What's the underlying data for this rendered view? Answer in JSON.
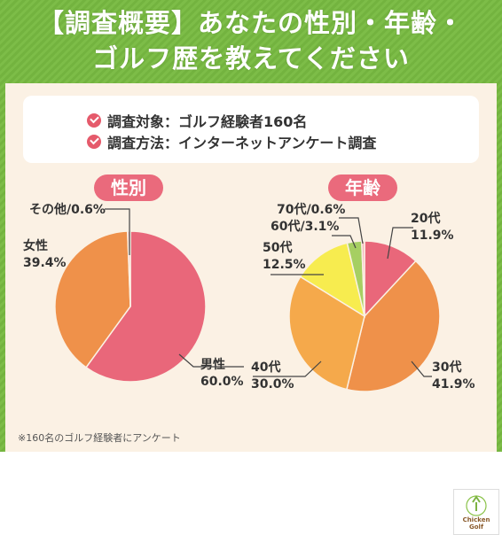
{
  "header": {
    "title_line1": "【調査概要】あなたの性別・年齢・",
    "title_line2": "ゴルフ歴を教えてください"
  },
  "survey_info": {
    "target": "調査対象：ゴルフ経験者160名",
    "method": "調査方法：インターネットアンケート調査"
  },
  "footnote": "※160名のゴルフ経験者にアンケート",
  "logo": {
    "line1": "Chicken",
    "line2": "Golf"
  },
  "colors": {
    "green_bg": "#7dbd48",
    "pill": "#ea6a7c",
    "pink": "#e9677a",
    "orange": "#ef914a",
    "light_orange": "#f5a94b",
    "yellow": "#f7ec4f",
    "light_green": "#a6cf62",
    "light_pink": "#f4b6bd"
  },
  "chart_data": [
    {
      "type": "pie",
      "title": "性別",
      "slices": [
        {
          "label": "男性",
          "value": 60.0,
          "display": "60.0%",
          "color": "#e9677a"
        },
        {
          "label": "女性",
          "value": 39.4,
          "display": "39.4%",
          "color": "#ef914a"
        },
        {
          "label": "その他",
          "value": 0.6,
          "display": "0.6%",
          "color": "#f4b6bd"
        }
      ]
    },
    {
      "type": "pie",
      "title": "年齢",
      "slices": [
        {
          "label": "20代",
          "value": 11.9,
          "display": "11.9%",
          "color": "#e9677a"
        },
        {
          "label": "30代",
          "value": 41.9,
          "display": "41.9%",
          "color": "#ef914a"
        },
        {
          "label": "40代",
          "value": 30.0,
          "display": "30.0%",
          "color": "#f5a94b"
        },
        {
          "label": "50代",
          "value": 12.5,
          "display": "12.5%",
          "color": "#f7ec4f"
        },
        {
          "label": "60代",
          "value": 3.1,
          "display": "3.1%",
          "color": "#a6cf62"
        },
        {
          "label": "70代",
          "value": 0.6,
          "display": "0.6%",
          "color": "#f4b6bd"
        }
      ]
    }
  ]
}
